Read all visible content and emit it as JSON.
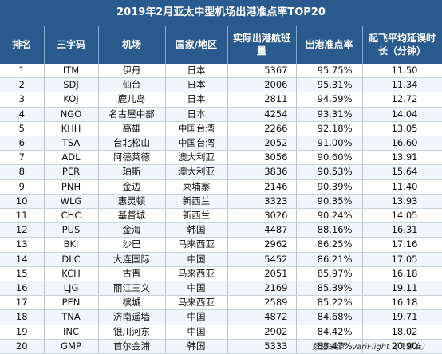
{
  "title": "2019年2月亚太中型机场出港准点率TOP20",
  "headers": [
    "排名",
    "三字码",
    "机场",
    "国家/地区",
    "实际出港航班量",
    "出港准点率",
    "起飞平均延误时长（分钟）"
  ],
  "rows": [
    [
      "1",
      "ITM",
      "伊丹",
      "日本",
      "5367",
      "95.75%",
      "11.50"
    ],
    [
      "2",
      "SDJ",
      "仙台",
      "日本",
      "2006",
      "95.31%",
      "11.34"
    ],
    [
      "3",
      "KOJ",
      "鹿儿岛",
      "日本",
      "2811",
      "94.59%",
      "12.72"
    ],
    [
      "4",
      "NGO",
      "名古屋中部",
      "日本",
      "4254",
      "93.31%",
      "14.04"
    ],
    [
      "5",
      "KHH",
      "高雄",
      "中国台湾",
      "2266",
      "92.18%",
      "13.05"
    ],
    [
      "6",
      "TSA",
      "台北松山",
      "中国台湾",
      "2052",
      "91.00%",
      "16.60"
    ],
    [
      "7",
      "ADL",
      "阿德莱德",
      "澳大利亚",
      "3056",
      "90.60%",
      "13.91"
    ],
    [
      "8",
      "PER",
      "珀斯",
      "澳大利亚",
      "3836",
      "90.53%",
      "15.64"
    ],
    [
      "9",
      "PNH",
      "金边",
      "柬埔寨",
      "2146",
      "90.39%",
      "11.40"
    ],
    [
      "10",
      "WLG",
      "惠灵顿",
      "新西兰",
      "3323",
      "90.35%",
      "13.93"
    ],
    [
      "11",
      "CHC",
      "基督城",
      "新西兰",
      "3026",
      "90.24%",
      "14.05"
    ],
    [
      "12",
      "PUS",
      "金海",
      "韩国",
      "4487",
      "88.16%",
      "16.31"
    ],
    [
      "13",
      "BKI",
      "沙巴",
      "马来西亚",
      "2962",
      "86.25%",
      "17.16"
    ],
    [
      "14",
      "DLC",
      "大连国际",
      "中国",
      "5452",
      "86.21%",
      "17.05"
    ],
    [
      "15",
      "KCH",
      "古晋",
      "马来西亚",
      "2051",
      "85.97%",
      "16.18"
    ],
    [
      "16",
      "LJG",
      "丽江三义",
      "中国",
      "2169",
      "85.39%",
      "19.11"
    ],
    [
      "17",
      "PEN",
      "槟城",
      "马来西亚",
      "2589",
      "85.22%",
      "16.18"
    ],
    [
      "18",
      "TNA",
      "济南遥墙",
      "中国",
      "4872",
      "84.68%",
      "19.71"
    ],
    [
      "19",
      "INC",
      "银川河东",
      "中国",
      "2902",
      "84.42%",
      "18.02"
    ],
    [
      "20",
      "GMP",
      "首尔金浦",
      "韩国",
      "5333",
      "83.47%",
      "20.90"
    ]
  ],
  "source": "数据来源：VariFlight（飞常准）",
  "colors": {
    "header_bg": "#2a5b8e",
    "header_text": "#ffffff"
  }
}
